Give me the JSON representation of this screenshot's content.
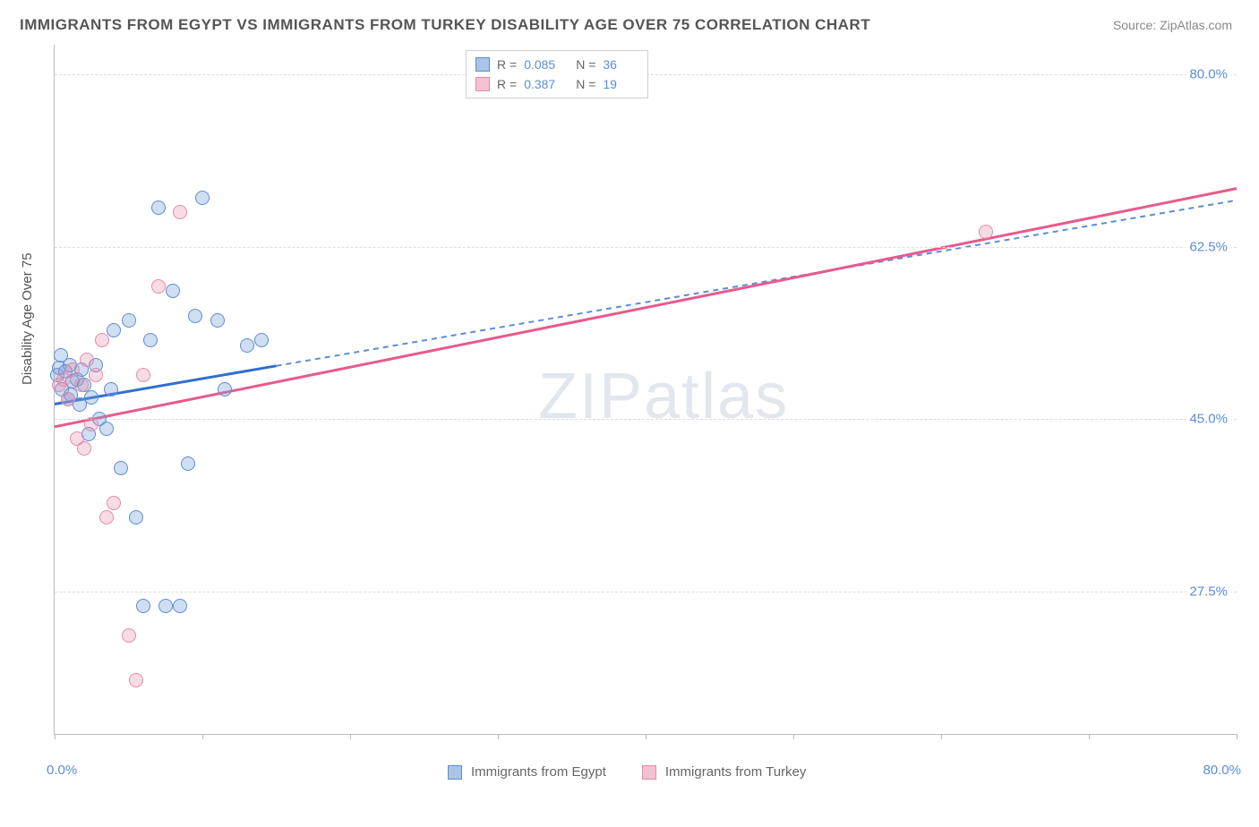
{
  "title": "IMMIGRANTS FROM EGYPT VS IMMIGRANTS FROM TURKEY DISABILITY AGE OVER 75 CORRELATION CHART",
  "source_label": "Source: ZipAtlas.com",
  "watermark": {
    "bold": "ZIP",
    "thin": "atlas"
  },
  "chart": {
    "type": "scatter",
    "background_color": "#ffffff",
    "grid_color": "#dddddd",
    "axis_color": "#bbbbbb",
    "text_color": "#666666",
    "value_color": "#5b8dd6",
    "xlim": [
      0,
      80
    ],
    "ylim": [
      13,
      83
    ],
    "ytick_values": [
      27.5,
      45.0,
      62.5,
      80.0
    ],
    "ytick_labels": [
      "27.5%",
      "45.0%",
      "62.5%",
      "80.0%"
    ],
    "xtick_values": [
      0,
      10,
      20,
      30,
      40,
      50,
      60,
      70,
      80
    ],
    "xaxis_min_label": "0.0%",
    "xaxis_max_label": "80.0%",
    "yaxis_title": "Disability Age Over 75",
    "point_radius": 8,
    "point_border_width": 1.5,
    "series": [
      {
        "name": "Immigrants from Egypt",
        "fill": "rgba(120,160,215,0.35)",
        "stroke": "#5b8dd6",
        "line_solid_color": "#2f6fd0",
        "line_dash_color": "#5b8dd6",
        "legend_swatch_fill": "#aac3e6",
        "legend_swatch_border": "#5b8dd6",
        "R_label": "R =",
        "R_value": "0.085",
        "N_label": "N =",
        "N_value": "36",
        "trend": {
          "x1": 0,
          "y1": 46.5,
          "x2": 80,
          "y2": 67.2,
          "solid_until_x": 15
        },
        "points": [
          [
            0.2,
            49.5
          ],
          [
            0.3,
            50.2
          ],
          [
            0.5,
            48.0
          ],
          [
            0.7,
            49.8
          ],
          [
            0.9,
            47.0
          ],
          [
            1.0,
            50.5
          ],
          [
            1.2,
            48.8
          ],
          [
            1.5,
            49.0
          ],
          [
            1.7,
            46.5
          ],
          [
            1.8,
            50.0
          ],
          [
            2.0,
            48.5
          ],
          [
            2.3,
            43.5
          ],
          [
            2.5,
            47.2
          ],
          [
            2.8,
            50.5
          ],
          [
            3.0,
            45.0
          ],
          [
            3.5,
            44.0
          ],
          [
            3.8,
            48.0
          ],
          [
            4.0,
            54.0
          ],
          [
            4.5,
            40.0
          ],
          [
            5.0,
            55.0
          ],
          [
            5.5,
            35.0
          ],
          [
            6.0,
            26.0
          ],
          [
            6.5,
            53.0
          ],
          [
            7.0,
            66.5
          ],
          [
            7.5,
            26.0
          ],
          [
            8.0,
            58.0
          ],
          [
            8.5,
            26.0
          ],
          [
            9.0,
            40.5
          ],
          [
            9.5,
            55.5
          ],
          [
            10.0,
            67.5
          ],
          [
            11.0,
            55.0
          ],
          [
            11.5,
            48.0
          ],
          [
            13.0,
            52.5
          ],
          [
            14.0,
            53.0
          ],
          [
            0.4,
            51.5
          ],
          [
            1.1,
            47.5
          ]
        ]
      },
      {
        "name": "Immigrants from Turkey",
        "fill": "rgba(230,140,170,0.30)",
        "stroke": "#e48aab",
        "line_solid_color": "#e75a8d",
        "line_dash_color": "#e48aab",
        "legend_swatch_fill": "#f2c1d2",
        "legend_swatch_border": "#e48aab",
        "R_label": "R =",
        "R_value": "0.387",
        "N_label": "N =",
        "N_value": "19",
        "trend": {
          "x1": 0,
          "y1": 44.2,
          "x2": 80,
          "y2": 68.4,
          "solid_until_x": 80
        },
        "points": [
          [
            0.3,
            48.5
          ],
          [
            0.6,
            49.0
          ],
          [
            0.9,
            47.0
          ],
          [
            1.2,
            50.0
          ],
          [
            1.5,
            43.0
          ],
          [
            1.8,
            48.5
          ],
          [
            2.0,
            42.0
          ],
          [
            2.5,
            44.5
          ],
          [
            2.8,
            49.5
          ],
          [
            3.2,
            53.0
          ],
          [
            3.5,
            35.0
          ],
          [
            4.0,
            36.5
          ],
          [
            5.0,
            23.0
          ],
          [
            5.5,
            18.5
          ],
          [
            6.0,
            49.5
          ],
          [
            7.0,
            58.5
          ],
          [
            8.5,
            66.0
          ],
          [
            63.0,
            64.0
          ],
          [
            2.2,
            51.0
          ]
        ]
      }
    ]
  },
  "legend_top": {
    "swatch_size": 16
  },
  "legend_bottom": {
    "swatch_size": 16
  }
}
